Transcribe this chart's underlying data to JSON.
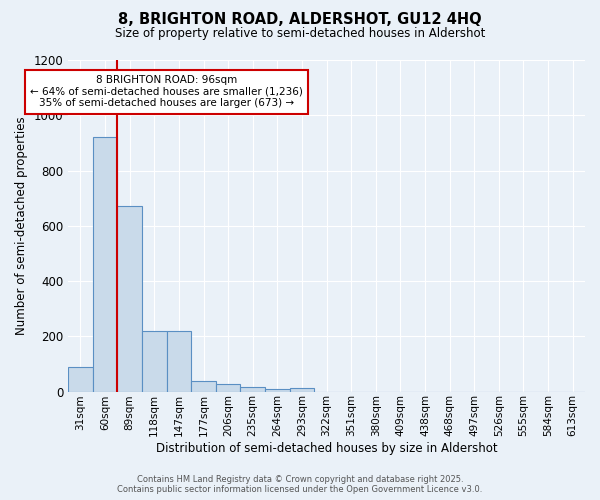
{
  "title_line1": "8, BRIGHTON ROAD, ALDERSHOT, GU12 4HQ",
  "title_line2": "Size of property relative to semi-detached houses in Aldershot",
  "xlabel": "Distribution of semi-detached houses by size in Aldershot",
  "ylabel": "Number of semi-detached properties",
  "categories": [
    "31sqm",
    "60sqm",
    "89sqm",
    "118sqm",
    "147sqm",
    "177sqm",
    "206sqm",
    "235sqm",
    "264sqm",
    "293sqm",
    "322sqm",
    "351sqm",
    "380sqm",
    "409sqm",
    "438sqm",
    "468sqm",
    "497sqm",
    "526sqm",
    "555sqm",
    "584sqm",
    "613sqm"
  ],
  "values": [
    88,
    921,
    672,
    218,
    220,
    38,
    28,
    15,
    8,
    12,
    0,
    0,
    0,
    0,
    0,
    0,
    0,
    0,
    0,
    0,
    0
  ],
  "bar_color": "#c9daea",
  "bar_edge_color": "#5a8fc3",
  "annotation_box_color": "#cc0000",
  "ylim": [
    0,
    1200
  ],
  "yticks": [
    0,
    200,
    400,
    600,
    800,
    1000,
    1200
  ],
  "annotation_title": "8 BRIGHTON ROAD: 96sqm",
  "annotation_line1": "← 64% of semi-detached houses are smaller (1,236)",
  "annotation_line2": "35% of semi-detached houses are larger (673) →",
  "footer_line1": "Contains HM Land Registry data © Crown copyright and database right 2025.",
  "footer_line2": "Contains public sector information licensed under the Open Government Licence v3.0.",
  "bg_color": "#eaf1f8",
  "grid_color": "#ffffff",
  "vline_color": "#cc0000",
  "vline_x_idx": 1.5
}
